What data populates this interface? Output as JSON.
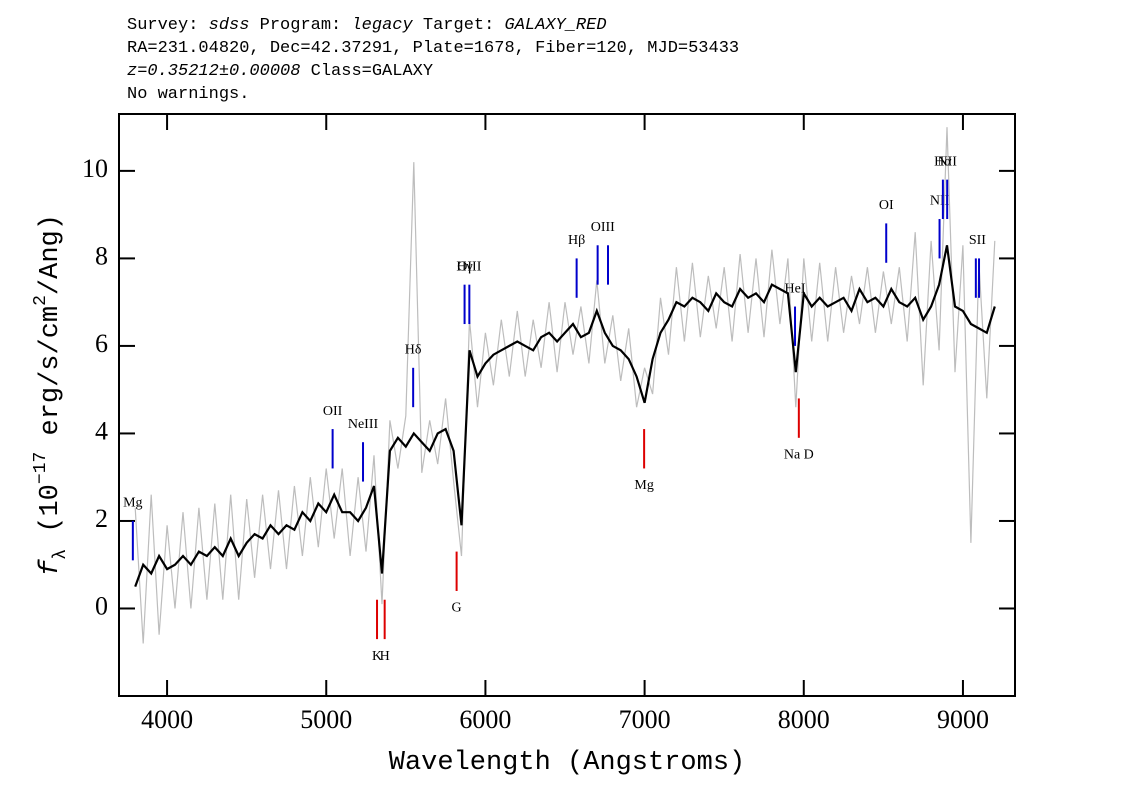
{
  "chart_data": {
    "type": "spectrum",
    "header": [
      [
        {
          "text": "Survey: ",
          "italic": false
        },
        {
          "text": "sdss",
          "italic": true
        },
        {
          "text": " Program: ",
          "italic": false
        },
        {
          "text": "legacy",
          "italic": true
        },
        {
          "text": " Target: ",
          "italic": false
        },
        {
          "text": "GALAXY_RED",
          "italic": true
        }
      ],
      [
        {
          "text": "RA=231.04820, Dec=42.37291, Plate=1678, Fiber=120, MJD=53433",
          "italic": false
        }
      ],
      [
        {
          "text": "z=0.35212±0.00008",
          "italic": true
        },
        {
          "text": " Class=GALAXY",
          "italic": false
        }
      ],
      [
        {
          "text": "No warnings.",
          "italic": false
        }
      ]
    ],
    "xlabel": "Wavelength (Angstroms)",
    "ylabel": [
      {
        "text": "f",
        "italic": true
      },
      {
        "text": "λ",
        "shift": "sub"
      },
      {
        "text": " (10"
      },
      {
        "text": "−17",
        "shift": "super"
      },
      {
        "text": " erg/s/cm"
      },
      {
        "text": "2",
        "shift": "super"
      },
      {
        "text": "/Ang)"
      }
    ],
    "xlim": [
      3698,
      9327
    ],
    "ylim": [
      -2,
      11.3
    ],
    "xticks": [
      4000,
      5000,
      6000,
      7000,
      8000,
      9000
    ],
    "yticks": [
      0,
      2,
      4,
      6,
      8,
      10
    ],
    "x": [
      3800,
      3850,
      3900,
      3950,
      4000,
      4050,
      4100,
      4150,
      4200,
      4250,
      4300,
      4350,
      4400,
      4450,
      4500,
      4550,
      4600,
      4650,
      4700,
      4750,
      4800,
      4850,
      4900,
      4950,
      5000,
      5050,
      5100,
      5150,
      5200,
      5250,
      5300,
      5350,
      5400,
      5450,
      5500,
      5550,
      5600,
      5650,
      5700,
      5750,
      5800,
      5850,
      5900,
      5950,
      6000,
      6050,
      6100,
      6150,
      6200,
      6250,
      6300,
      6350,
      6400,
      6450,
      6500,
      6550,
      6600,
      6650,
      6700,
      6750,
      6800,
      6850,
      6900,
      6950,
      7000,
      7050,
      7100,
      7150,
      7200,
      7250,
      7300,
      7350,
      7400,
      7450,
      7500,
      7550,
      7600,
      7650,
      7700,
      7750,
      7800,
      7850,
      7900,
      7950,
      8000,
      8050,
      8100,
      8150,
      8200,
      8250,
      8300,
      8350,
      8400,
      8450,
      8500,
      8550,
      8600,
      8650,
      8700,
      8750,
      8800,
      8850,
      8900,
      8950,
      9000,
      9050,
      9100,
      9150,
      9200
    ],
    "series": [
      {
        "color": "#bdbdbd",
        "values": [
          2.3,
          -0.8,
          2.6,
          -0.6,
          1.9,
          0.0,
          2.2,
          0.0,
          2.3,
          0.2,
          2.4,
          0.2,
          2.6,
          0.2,
          2.5,
          0.7,
          2.6,
          0.9,
          2.7,
          0.9,
          2.8,
          1.2,
          3.0,
          1.4,
          3.2,
          1.6,
          3.2,
          1.2,
          3.0,
          1.3,
          3.5,
          0.1,
          4.3,
          3.2,
          4.4,
          10.2,
          3.1,
          4.3,
          3.3,
          4.8,
          2.9,
          1.2,
          6.6,
          4.6,
          6.3,
          5.1,
          6.6,
          5.3,
          6.8,
          5.3,
          6.6,
          5.5,
          7.0,
          5.4,
          7.0,
          5.8,
          6.9,
          5.6,
          7.5,
          5.6,
          6.7,
          5.2,
          6.4,
          4.6,
          5.5,
          4.9,
          7.1,
          5.8,
          7.8,
          6.1,
          7.9,
          6.2,
          7.6,
          6.4,
          7.8,
          6.1,
          8.1,
          6.3,
          8.0,
          6.2,
          8.2,
          6.5,
          8.0,
          4.6,
          8.0,
          6.1,
          7.9,
          6.1,
          7.8,
          6.3,
          7.6,
          6.5,
          7.8,
          6.3,
          7.7,
          6.5,
          7.8,
          6.1,
          8.6,
          5.1,
          8.4,
          5.9,
          11.0,
          5.4,
          8.3,
          1.5,
          7.9,
          4.8,
          8.4
        ]
      },
      {
        "color": "#000000",
        "values": [
          0.5,
          1.0,
          0.8,
          1.2,
          0.9,
          1.0,
          1.2,
          1.0,
          1.3,
          1.2,
          1.4,
          1.2,
          1.6,
          1.2,
          1.5,
          1.7,
          1.6,
          1.9,
          1.7,
          1.9,
          1.8,
          2.2,
          2.0,
          2.4,
          2.2,
          2.6,
          2.2,
          2.2,
          2.0,
          2.3,
          2.8,
          0.8,
          3.6,
          3.9,
          3.7,
          4.0,
          3.8,
          3.6,
          4.0,
          4.1,
          3.6,
          1.9,
          5.9,
          5.3,
          5.6,
          5.8,
          5.9,
          6.0,
          6.1,
          6.0,
          5.9,
          6.2,
          6.3,
          6.1,
          6.3,
          6.5,
          6.2,
          6.3,
          6.8,
          6.3,
          6.0,
          5.9,
          5.7,
          5.3,
          4.7,
          5.7,
          6.3,
          6.6,
          7.0,
          6.9,
          7.1,
          7.0,
          6.8,
          7.2,
          7.0,
          6.9,
          7.3,
          7.1,
          7.2,
          7.0,
          7.4,
          7.3,
          7.2,
          5.4,
          7.2,
          6.9,
          7.1,
          6.9,
          7.0,
          7.1,
          6.8,
          7.3,
          7.0,
          7.1,
          6.9,
          7.3,
          7.0,
          6.9,
          7.1,
          6.6,
          6.9,
          7.4,
          8.3,
          6.9,
          6.8,
          6.5,
          6.4,
          6.3,
          6.9
        ]
      }
    ],
    "emission_color": "#0000cc",
    "absorption_color": "#dd0000",
    "emission_lines": [
      {
        "label": "Mg",
        "x": [
          3785
        ]
      },
      {
        "label": "OII",
        "x": [
          5040
        ]
      },
      {
        "label": "NeIII",
        "x": [
          5231
        ]
      },
      {
        "label": "Hδ",
        "x": [
          5546
        ]
      },
      {
        "label": "Hγ",
        "x": [
          5869
        ]
      },
      {
        "label": "OIII",
        "x": [
          5899
        ]
      },
      {
        "label": "Hβ",
        "x": [
          6573
        ]
      },
      {
        "label": "OIII",
        "x": [
          6705,
          6770
        ]
      },
      {
        "label": "HeI",
        "x": [
          7945
        ]
      },
      {
        "label": "OI",
        "x": [
          8518
        ]
      },
      {
        "label": "NII",
        "x": [
          8853
        ]
      },
      {
        "label": "Hα",
        "x": [
          8874
        ]
      },
      {
        "label": "NII",
        "x": [
          8901
        ]
      },
      {
        "label": "SII",
        "x": [
          9081,
          9101
        ]
      }
    ],
    "absorption_lines": [
      {
        "label": "K",
        "x": [
          5319
        ]
      },
      {
        "label": "H",
        "x": [
          5367
        ]
      },
      {
        "label": "G",
        "x": [
          5819
        ]
      },
      {
        "label": "Mg",
        "x": [
          6997
        ]
      },
      {
        "label": "Na D",
        "x": [
          7969
        ]
      }
    ]
  }
}
